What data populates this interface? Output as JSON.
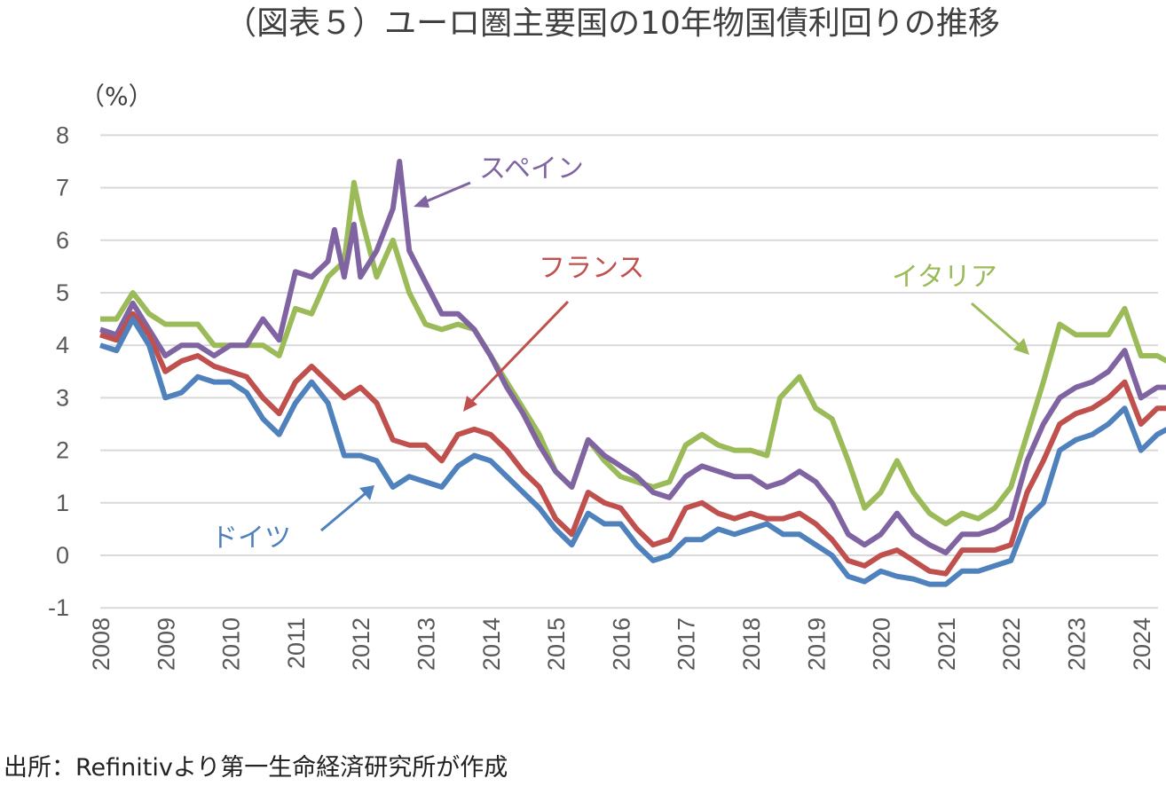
{
  "chart_data": {
    "type": "line",
    "title": "（図表５）ユーロ圏主要国の10年物国債利回りの推移",
    "ylabel": "（%）",
    "xlabel": "",
    "source": "出所：Refinitivより第一生命経済研究所が作成",
    "ylim": [
      -1,
      8
    ],
    "xlim": [
      2008,
      2024.4
    ],
    "yticks": [
      "-1",
      "0",
      "1",
      "2",
      "3",
      "4",
      "5",
      "6",
      "7",
      "8"
    ],
    "xticks": [
      "2008",
      "2009",
      "2010",
      "2011",
      "2012",
      "2013",
      "2014",
      "2015",
      "2016",
      "2017",
      "2018",
      "2019",
      "2020",
      "2021",
      "2022",
      "2023",
      "2024"
    ],
    "grid": true,
    "series": [
      {
        "name": "イタリア",
        "color": "#9BBB59",
        "points": [
          [
            2008,
            4.5
          ],
          [
            2008.25,
            4.5
          ],
          [
            2008.5,
            5.0
          ],
          [
            2008.75,
            4.6
          ],
          [
            2009,
            4.4
          ],
          [
            2009.25,
            4.4
          ],
          [
            2009.5,
            4.4
          ],
          [
            2009.75,
            4.0
          ],
          [
            2010,
            4.0
          ],
          [
            2010.25,
            4.0
          ],
          [
            2010.5,
            4.0
          ],
          [
            2010.75,
            3.8
          ],
          [
            2011,
            4.7
          ],
          [
            2011.25,
            4.6
          ],
          [
            2011.5,
            5.3
          ],
          [
            2011.75,
            5.6
          ],
          [
            2011.9,
            7.1
          ],
          [
            2012,
            6.5
          ],
          [
            2012.25,
            5.3
          ],
          [
            2012.5,
            6.0
          ],
          [
            2012.75,
            5.0
          ],
          [
            2013,
            4.4
          ],
          [
            2013.25,
            4.3
          ],
          [
            2013.5,
            4.4
          ],
          [
            2013.75,
            4.3
          ],
          [
            2014,
            3.8
          ],
          [
            2014.25,
            3.3
          ],
          [
            2014.5,
            2.8
          ],
          [
            2014.75,
            2.3
          ],
          [
            2015,
            1.6
          ],
          [
            2015.25,
            1.3
          ],
          [
            2015.5,
            2.2
          ],
          [
            2015.75,
            1.8
          ],
          [
            2016,
            1.5
          ],
          [
            2016.25,
            1.4
          ],
          [
            2016.5,
            1.3
          ],
          [
            2016.75,
            1.4
          ],
          [
            2017,
            2.1
          ],
          [
            2017.25,
            2.3
          ],
          [
            2017.5,
            2.1
          ],
          [
            2017.75,
            2.0
          ],
          [
            2018,
            2.0
          ],
          [
            2018.25,
            1.9
          ],
          [
            2018.45,
            3.0
          ],
          [
            2018.75,
            3.4
          ],
          [
            2019,
            2.8
          ],
          [
            2019.25,
            2.6
          ],
          [
            2019.5,
            1.8
          ],
          [
            2019.75,
            0.9
          ],
          [
            2020,
            1.2
          ],
          [
            2020.25,
            1.8
          ],
          [
            2020.5,
            1.2
          ],
          [
            2020.75,
            0.8
          ],
          [
            2021,
            0.6
          ],
          [
            2021.25,
            0.8
          ],
          [
            2021.5,
            0.7
          ],
          [
            2021.75,
            0.9
          ],
          [
            2022,
            1.3
          ],
          [
            2022.25,
            2.3
          ],
          [
            2022.5,
            3.3
          ],
          [
            2022.75,
            4.4
          ],
          [
            2023,
            4.2
          ],
          [
            2023.25,
            4.2
          ],
          [
            2023.5,
            4.2
          ],
          [
            2023.75,
            4.7
          ],
          [
            2024,
            3.8
          ],
          [
            2024.25,
            3.8
          ],
          [
            2024.4,
            3.7
          ]
        ]
      },
      {
        "name": "スペイン",
        "color": "#8064A2",
        "points": [
          [
            2008,
            4.3
          ],
          [
            2008.25,
            4.2
          ],
          [
            2008.5,
            4.8
          ],
          [
            2008.75,
            4.3
          ],
          [
            2009,
            3.8
          ],
          [
            2009.25,
            4.0
          ],
          [
            2009.5,
            4.0
          ],
          [
            2009.75,
            3.8
          ],
          [
            2010,
            4.0
          ],
          [
            2010.25,
            4.0
          ],
          [
            2010.5,
            4.5
          ],
          [
            2010.75,
            4.1
          ],
          [
            2011,
            5.4
          ],
          [
            2011.25,
            5.3
          ],
          [
            2011.5,
            5.6
          ],
          [
            2011.6,
            6.2
          ],
          [
            2011.75,
            5.3
          ],
          [
            2011.9,
            6.3
          ],
          [
            2012,
            5.3
          ],
          [
            2012.25,
            5.8
          ],
          [
            2012.5,
            6.6
          ],
          [
            2012.6,
            7.5
          ],
          [
            2012.75,
            5.8
          ],
          [
            2013,
            5.2
          ],
          [
            2013.25,
            4.6
          ],
          [
            2013.5,
            4.6
          ],
          [
            2013.75,
            4.3
          ],
          [
            2014,
            3.8
          ],
          [
            2014.25,
            3.2
          ],
          [
            2014.5,
            2.7
          ],
          [
            2014.75,
            2.1
          ],
          [
            2015,
            1.6
          ],
          [
            2015.25,
            1.3
          ],
          [
            2015.5,
            2.2
          ],
          [
            2015.75,
            1.9
          ],
          [
            2016,
            1.7
          ],
          [
            2016.25,
            1.5
          ],
          [
            2016.5,
            1.2
          ],
          [
            2016.75,
            1.1
          ],
          [
            2017,
            1.5
          ],
          [
            2017.25,
            1.7
          ],
          [
            2017.5,
            1.6
          ],
          [
            2017.75,
            1.5
          ],
          [
            2018,
            1.5
          ],
          [
            2018.25,
            1.3
          ],
          [
            2018.5,
            1.4
          ],
          [
            2018.75,
            1.6
          ],
          [
            2019,
            1.4
          ],
          [
            2019.25,
            1.0
          ],
          [
            2019.5,
            0.4
          ],
          [
            2019.75,
            0.2
          ],
          [
            2020,
            0.4
          ],
          [
            2020.25,
            0.8
          ],
          [
            2020.5,
            0.4
          ],
          [
            2020.75,
            0.2
          ],
          [
            2021,
            0.05
          ],
          [
            2021.25,
            0.4
          ],
          [
            2021.5,
            0.4
          ],
          [
            2021.75,
            0.5
          ],
          [
            2022,
            0.7
          ],
          [
            2022.25,
            1.8
          ],
          [
            2022.5,
            2.5
          ],
          [
            2022.75,
            3.0
          ],
          [
            2023,
            3.2
          ],
          [
            2023.25,
            3.3
          ],
          [
            2023.5,
            3.5
          ],
          [
            2023.75,
            3.9
          ],
          [
            2024,
            3.0
          ],
          [
            2024.25,
            3.2
          ],
          [
            2024.4,
            3.2
          ]
        ]
      },
      {
        "name": "フランス",
        "color": "#C0504D",
        "points": [
          [
            2008,
            4.2
          ],
          [
            2008.25,
            4.1
          ],
          [
            2008.5,
            4.6
          ],
          [
            2008.75,
            4.2
          ],
          [
            2009,
            3.5
          ],
          [
            2009.25,
            3.7
          ],
          [
            2009.5,
            3.8
          ],
          [
            2009.75,
            3.6
          ],
          [
            2010,
            3.5
          ],
          [
            2010.25,
            3.4
          ],
          [
            2010.5,
            3.0
          ],
          [
            2010.75,
            2.7
          ],
          [
            2011,
            3.3
          ],
          [
            2011.25,
            3.6
          ],
          [
            2011.5,
            3.3
          ],
          [
            2011.75,
            3.0
          ],
          [
            2012,
            3.2
          ],
          [
            2012.25,
            2.9
          ],
          [
            2012.5,
            2.2
          ],
          [
            2012.75,
            2.1
          ],
          [
            2013,
            2.1
          ],
          [
            2013.25,
            1.8
          ],
          [
            2013.5,
            2.3
          ],
          [
            2013.75,
            2.4
          ],
          [
            2014,
            2.3
          ],
          [
            2014.25,
            2.0
          ],
          [
            2014.5,
            1.6
          ],
          [
            2014.75,
            1.3
          ],
          [
            2015,
            0.7
          ],
          [
            2015.25,
            0.4
          ],
          [
            2015.5,
            1.2
          ],
          [
            2015.75,
            1.0
          ],
          [
            2016,
            0.9
          ],
          [
            2016.25,
            0.5
          ],
          [
            2016.5,
            0.2
          ],
          [
            2016.75,
            0.3
          ],
          [
            2017,
            0.9
          ],
          [
            2017.25,
            1.0
          ],
          [
            2017.5,
            0.8
          ],
          [
            2017.75,
            0.7
          ],
          [
            2018,
            0.8
          ],
          [
            2018.25,
            0.7
          ],
          [
            2018.5,
            0.7
          ],
          [
            2018.75,
            0.8
          ],
          [
            2019,
            0.6
          ],
          [
            2019.25,
            0.3
          ],
          [
            2019.5,
            -0.1
          ],
          [
            2019.75,
            -0.2
          ],
          [
            2020,
            0.0
          ],
          [
            2020.25,
            0.1
          ],
          [
            2020.5,
            -0.1
          ],
          [
            2020.75,
            -0.3
          ],
          [
            2021,
            -0.35
          ],
          [
            2021.25,
            0.1
          ],
          [
            2021.5,
            0.1
          ],
          [
            2021.75,
            0.1
          ],
          [
            2022,
            0.2
          ],
          [
            2022.25,
            1.2
          ],
          [
            2022.5,
            1.8
          ],
          [
            2022.75,
            2.5
          ],
          [
            2023,
            2.7
          ],
          [
            2023.25,
            2.8
          ],
          [
            2023.5,
            3.0
          ],
          [
            2023.75,
            3.3
          ],
          [
            2024,
            2.5
          ],
          [
            2024.25,
            2.8
          ],
          [
            2024.4,
            2.8
          ]
        ]
      },
      {
        "name": "ドイツ",
        "color": "#4F81BD",
        "points": [
          [
            2008,
            4.0
          ],
          [
            2008.25,
            3.9
          ],
          [
            2008.5,
            4.5
          ],
          [
            2008.75,
            4.0
          ],
          [
            2009,
            3.0
          ],
          [
            2009.25,
            3.1
          ],
          [
            2009.5,
            3.4
          ],
          [
            2009.75,
            3.3
          ],
          [
            2010,
            3.3
          ],
          [
            2010.25,
            3.1
          ],
          [
            2010.5,
            2.6
          ],
          [
            2010.75,
            2.3
          ],
          [
            2011,
            2.9
          ],
          [
            2011.25,
            3.3
          ],
          [
            2011.5,
            2.9
          ],
          [
            2011.75,
            1.9
          ],
          [
            2012,
            1.9
          ],
          [
            2012.25,
            1.8
          ],
          [
            2012.5,
            1.3
          ],
          [
            2012.75,
            1.5
          ],
          [
            2013,
            1.4
          ],
          [
            2013.25,
            1.3
          ],
          [
            2013.5,
            1.7
          ],
          [
            2013.75,
            1.9
          ],
          [
            2014,
            1.8
          ],
          [
            2014.25,
            1.5
          ],
          [
            2014.5,
            1.2
          ],
          [
            2014.75,
            0.9
          ],
          [
            2015,
            0.5
          ],
          [
            2015.25,
            0.2
          ],
          [
            2015.5,
            0.8
          ],
          [
            2015.75,
            0.6
          ],
          [
            2016,
            0.6
          ],
          [
            2016.25,
            0.2
          ],
          [
            2016.5,
            -0.1
          ],
          [
            2016.75,
            0.0
          ],
          [
            2017,
            0.3
          ],
          [
            2017.25,
            0.3
          ],
          [
            2017.5,
            0.5
          ],
          [
            2017.75,
            0.4
          ],
          [
            2018,
            0.5
          ],
          [
            2018.25,
            0.6
          ],
          [
            2018.5,
            0.4
          ],
          [
            2018.75,
            0.4
          ],
          [
            2019,
            0.2
          ],
          [
            2019.25,
            0.0
          ],
          [
            2019.5,
            -0.4
          ],
          [
            2019.75,
            -0.5
          ],
          [
            2020,
            -0.3
          ],
          [
            2020.25,
            -0.4
          ],
          [
            2020.5,
            -0.45
          ],
          [
            2020.75,
            -0.55
          ],
          [
            2021,
            -0.55
          ],
          [
            2021.25,
            -0.3
          ],
          [
            2021.5,
            -0.3
          ],
          [
            2021.75,
            -0.2
          ],
          [
            2022,
            -0.1
          ],
          [
            2022.25,
            0.7
          ],
          [
            2022.5,
            1.0
          ],
          [
            2022.75,
            2.0
          ],
          [
            2023,
            2.2
          ],
          [
            2023.25,
            2.3
          ],
          [
            2023.5,
            2.5
          ],
          [
            2023.75,
            2.8
          ],
          [
            2024,
            2.0
          ],
          [
            2024.25,
            2.3
          ],
          [
            2024.4,
            2.4
          ]
        ]
      }
    ],
    "annotations": [
      {
        "text": "スペイン",
        "series": "スペイン"
      },
      {
        "text": "フランス",
        "series": "フランス"
      },
      {
        "text": "イタリア",
        "series": "イタリア"
      },
      {
        "text": "ドイツ",
        "series": "ドイツ"
      }
    ]
  }
}
